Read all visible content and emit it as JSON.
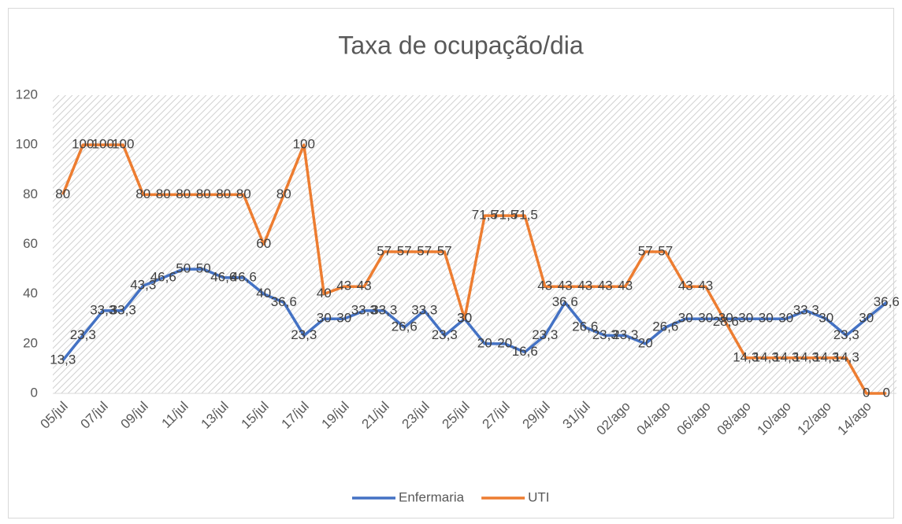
{
  "chart_data": {
    "type": "line",
    "title": "Taxa de ocupação/dia",
    "categories": [
      "05/jul",
      null,
      "07/jul",
      null,
      "09/jul",
      null,
      "11/jul",
      null,
      "13/jul",
      null,
      "15/jul",
      null,
      "17/jul",
      null,
      "19/jul",
      null,
      "21/jul",
      null,
      "23/jul",
      null,
      "25/jul",
      null,
      "27/jul",
      null,
      "29/jul",
      null,
      "31/jul",
      null,
      "02/ago",
      null,
      "04/ago",
      null,
      "06/ago",
      null,
      "08/ago",
      null,
      "10/ago",
      null,
      "12/ago",
      null,
      "14/ago",
      null
    ],
    "series": [
      {
        "name": "Enfermaria",
        "color": "#4472c4",
        "values": [
          13.3,
          23.3,
          33.3,
          33.3,
          43.3,
          46.6,
          50,
          50,
          46.6,
          46.6,
          40,
          36.6,
          23.3,
          30,
          30,
          33.3,
          33.3,
          26.6,
          33.3,
          23.3,
          30,
          20,
          20,
          16.6,
          23.3,
          36.6,
          26.6,
          23.3,
          23.3,
          20,
          26.6,
          30,
          30,
          30,
          30,
          30,
          30,
          33.3,
          30,
          23.3,
          30,
          36.6
        ],
        "value_labels": [
          "13,3",
          "23,3",
          "33,3",
          "33,3",
          "43,3",
          "46,6",
          "50",
          "50",
          "46,6",
          "46,6",
          "40",
          "36,6",
          "23,3",
          "30",
          "30",
          "33,3",
          "33,3",
          "26,6",
          "33,3",
          "23,3",
          "30",
          "20",
          "20",
          "16,6",
          "23,3",
          "36,6",
          "26,6",
          "23,3",
          "23,3",
          "20",
          "26,6",
          "30",
          "30",
          "30",
          "30",
          "30",
          "30",
          "33,3",
          "30",
          "23,3",
          "30",
          "36,6"
        ]
      },
      {
        "name": "UTI",
        "color": "#ed7d31",
        "values": [
          80,
          100,
          100,
          100,
          80,
          80,
          80,
          80,
          80,
          80,
          60,
          80,
          100,
          40,
          43,
          43,
          57,
          57,
          57,
          57,
          30,
          71.5,
          71.5,
          71.5,
          43,
          43,
          43,
          43,
          43,
          57,
          57,
          43,
          43,
          28.6,
          14.3,
          14.3,
          14.3,
          14.3,
          14.3,
          14.3,
          0,
          0
        ],
        "value_labels": [
          "80",
          "100",
          "100",
          "100",
          "80",
          "80",
          "80",
          "80",
          "80",
          "80",
          "60",
          "80",
          "100",
          "40",
          "43",
          "43",
          "57",
          "57",
          "57",
          "57",
          "30",
          "71,5",
          "71,5",
          "71,5",
          "43",
          "43",
          "43",
          "43",
          "43",
          "57",
          "57",
          "43",
          "43",
          "28,6",
          "14,3",
          "14,3",
          "14,3",
          "14,3",
          "14,3",
          "14,3",
          "0",
          "0"
        ]
      }
    ],
    "ylim": [
      0,
      120
    ],
    "yticks": [
      0,
      20,
      40,
      60,
      80,
      100,
      120
    ],
    "legend": "bottom"
  }
}
